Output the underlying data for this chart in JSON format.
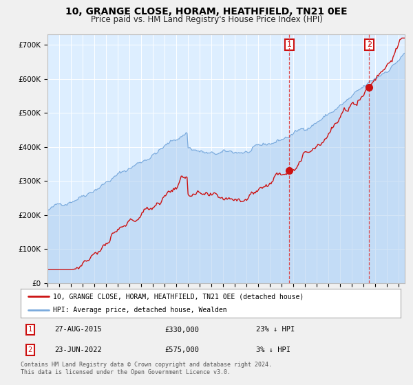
{
  "title": "10, GRANGE CLOSE, HORAM, HEATHFIELD, TN21 0EE",
  "subtitle": "Price paid vs. HM Land Registry's House Price Index (HPI)",
  "title_fontsize": 10,
  "subtitle_fontsize": 8.5,
  "ylabel_ticks": [
    "£0",
    "£100K",
    "£200K",
    "£300K",
    "£400K",
    "£500K",
    "£600K",
    "£700K"
  ],
  "ytick_vals": [
    0,
    100000,
    200000,
    300000,
    400000,
    500000,
    600000,
    700000
  ],
  "ylim": [
    0,
    730000
  ],
  "xlim_start": 1995.0,
  "xlim_end": 2025.5,
  "hpi_color": "#7aaadd",
  "hpi_fill_color": "#aaccee",
  "price_color": "#cc1111",
  "fig_bg": "#f0f0f0",
  "plot_bg": "#ddeeff",
  "grid_color": "#ffffff",
  "sale1_date": 2015.65,
  "sale1_price": 330000,
  "sale2_date": 2022.47,
  "sale2_price": 575000,
  "legend_line1": "10, GRANGE CLOSE, HORAM, HEATHFIELD, TN21 0EE (detached house)",
  "legend_line2": "HPI: Average price, detached house, Wealden",
  "table_row1": [
    "1",
    "27-AUG-2015",
    "£330,000",
    "23% ↓ HPI"
  ],
  "table_row2": [
    "2",
    "23-JUN-2022",
    "£575,000",
    "3% ↓ HPI"
  ],
  "footer": "Contains HM Land Registry data © Crown copyright and database right 2024.\nThis data is licensed under the Open Government Licence v3.0."
}
